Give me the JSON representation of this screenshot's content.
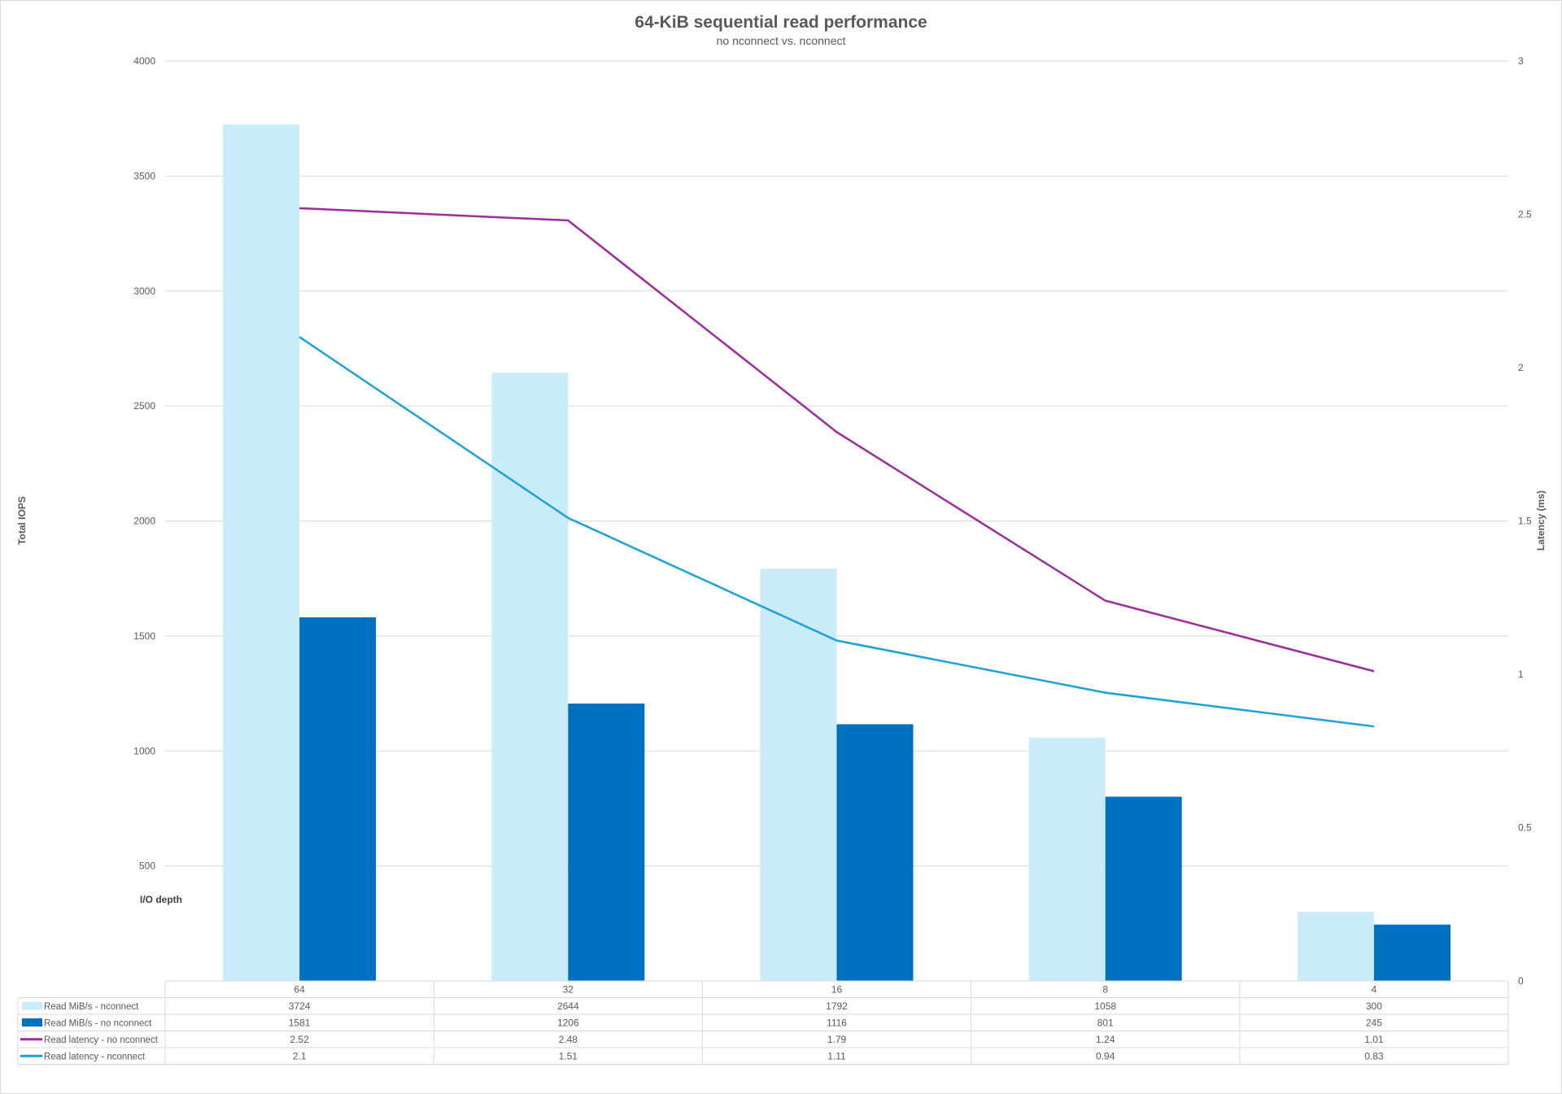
{
  "chart_data": {
    "type": "bar+line",
    "title": "64-KiB sequential read performance",
    "subtitle": "no nconnect vs. nconnect",
    "xlabel": "I/O depth",
    "ylabel": "Total IOPS",
    "y2label": "Latency (ms)",
    "categories": [
      "64",
      "32",
      "16",
      "8",
      "4"
    ],
    "ylim": [
      0,
      4000
    ],
    "yticks": [
      500,
      1000,
      1500,
      2000,
      2500,
      3000,
      3500,
      4000
    ],
    "y2lim": [
      0,
      3
    ],
    "y2ticks": [
      "0",
      "0.5",
      "1",
      "1.5",
      "2",
      "2.5",
      "3"
    ],
    "grid": true,
    "legend": "data-table-bottom",
    "series": [
      {
        "name": "Read MiB/s - nconnect",
        "kind": "bar",
        "axis": "left",
        "color": "#c9ebfa",
        "values": [
          3724,
          2644,
          1792,
          1058,
          300
        ]
      },
      {
        "name": "Read MiB/s - no nconnect",
        "kind": "bar",
        "axis": "left",
        "color": "#0070c0",
        "values": [
          1581,
          1206,
          1116,
          801,
          245
        ]
      },
      {
        "name": "Read latency - no nconnect",
        "kind": "line",
        "axis": "right",
        "color": "#9e2b9b",
        "values": [
          2.52,
          2.48,
          1.79,
          1.24,
          1.01
        ]
      },
      {
        "name": "Read latency - nconnect",
        "kind": "line",
        "axis": "right",
        "color": "#1ba1dc",
        "values": [
          2.1,
          1.51,
          1.11,
          0.94,
          0.83
        ]
      }
    ]
  }
}
